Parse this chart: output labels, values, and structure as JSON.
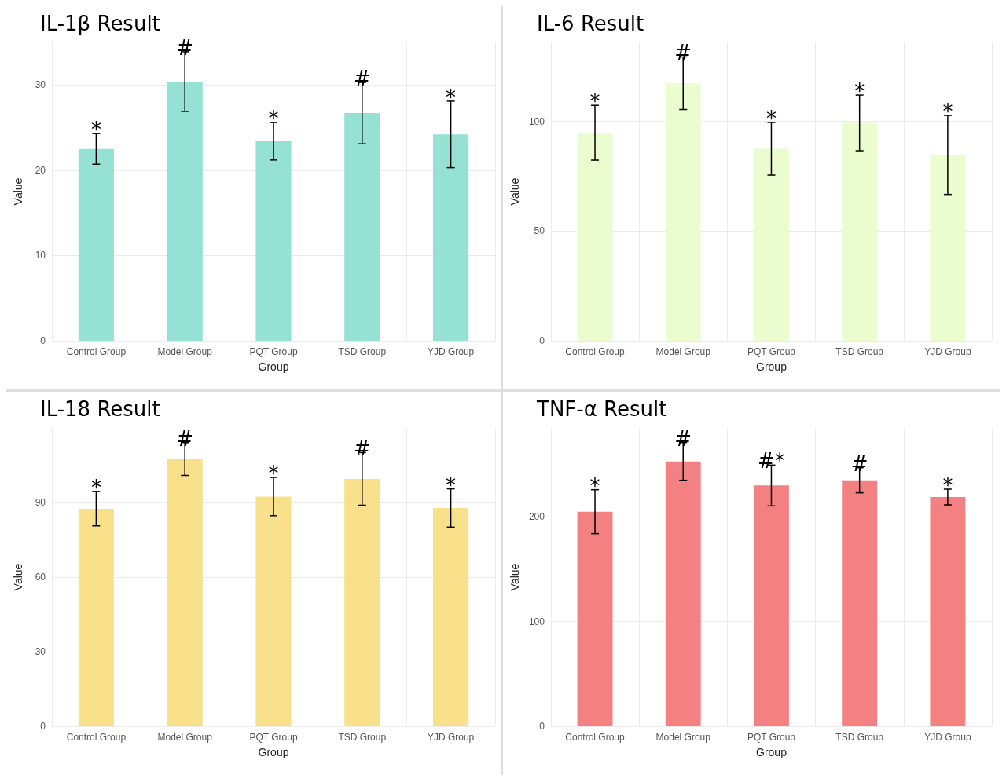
{
  "chart_data": [
    {
      "type": "bar",
      "title": "IL-1β Result",
      "xlabel": "Group",
      "ylabel": "Value",
      "categories": [
        "Control Group",
        "Model Group",
        "PQT Group",
        "TSD Group",
        "YJD Group"
      ],
      "values": [
        22.5,
        30.4,
        23.4,
        26.7,
        24.2
      ],
      "errors": [
        1.8,
        3.5,
        2.2,
        3.6,
        3.9
      ],
      "color": "#95e1d3",
      "ylim": [
        0,
        35
      ],
      "yticks": [
        0,
        10,
        20,
        30
      ],
      "grid": true,
      "annotations": [
        {
          "text": "*",
          "x": "Control Group",
          "y": 24.3
        },
        {
          "text": "#",
          "x": "Model Group",
          "y": 33.9
        },
        {
          "text": "*",
          "x": "PQT Group",
          "y": 25.6
        },
        {
          "text": "#",
          "x": "TSD Group",
          "y": 30.3
        },
        {
          "text": "*",
          "x": "YJD Group",
          "y": 28.1
        }
      ]
    },
    {
      "type": "bar",
      "title": "IL-6 Result",
      "xlabel": "Group",
      "ylabel": "Value",
      "categories": [
        "Control Group",
        "Model Group",
        "PQT Group",
        "TSD Group",
        "YJD Group"
      ],
      "values": [
        94.8,
        117.4,
        87.5,
        99.3,
        84.7
      ],
      "errors": [
        12.5,
        12,
        12,
        12.7,
        18
      ],
      "color": "#ebfccf",
      "ylim": [
        0,
        136
      ],
      "yticks": [
        0,
        50,
        100
      ],
      "grid": true,
      "annotations": [
        {
          "text": "*",
          "x": "Control Group",
          "y": 107.3
        },
        {
          "text": "#",
          "x": "Model Group",
          "y": 129.4
        },
        {
          "text": "*",
          "x": "PQT Group",
          "y": 99.5
        },
        {
          "text": "*",
          "x": "TSD Group",
          "y": 112
        },
        {
          "text": "*",
          "x": "YJD Group",
          "y": 102.7
        }
      ]
    },
    {
      "type": "bar",
      "title": "IL-18 Result",
      "xlabel": "Group",
      "ylabel": "Value",
      "categories": [
        "Control Group",
        "Model Group",
        "PQT Group",
        "TSD Group",
        "YJD Group"
      ],
      "values": [
        87.5,
        107.5,
        92.4,
        99.5,
        87.8
      ],
      "errors": [
        6.9,
        6.6,
        7.7,
        10.6,
        7.7
      ],
      "color": "#f9e08b",
      "ylim": [
        0,
        120
      ],
      "yticks": [
        0,
        30,
        60,
        90
      ],
      "grid": true,
      "annotations": [
        {
          "text": "*",
          "x": "Control Group",
          "y": 94.4
        },
        {
          "text": "#",
          "x": "Model Group",
          "y": 114.1
        },
        {
          "text": "*",
          "x": "PQT Group",
          "y": 100.1
        },
        {
          "text": "#",
          "x": "TSD Group",
          "y": 110.1
        },
        {
          "text": "*",
          "x": "YJD Group",
          "y": 95.5
        }
      ]
    },
    {
      "type": "bar",
      "title": "TNF-α Result",
      "xlabel": "Group",
      "ylabel": "Value",
      "categories": [
        "Control Group",
        "Model Group",
        "PQT Group",
        "TSD Group",
        "YJD Group"
      ],
      "values": [
        205,
        253,
        230,
        235,
        219
      ],
      "errors": [
        21,
        18,
        19.5,
        12,
        7.5
      ],
      "color": "#f38181",
      "ylim": [
        0,
        285
      ],
      "yticks": [
        0,
        100,
        200
      ],
      "grid": true,
      "annotations": [
        {
          "text": "*",
          "x": "Control Group",
          "y": 226
        },
        {
          "text": "#",
          "x": "Model Group",
          "y": 271
        },
        {
          "text": "#*",
          "x": "PQT Group",
          "y": 249.5
        },
        {
          "text": "#",
          "x": "TSD Group",
          "y": 247
        },
        {
          "text": "*",
          "x": "YJD Group",
          "y": 226.5
        }
      ]
    }
  ]
}
